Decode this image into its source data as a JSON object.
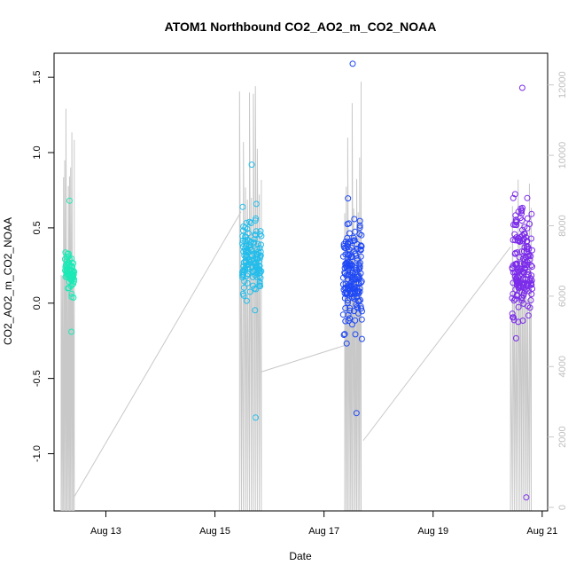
{
  "chart_data": {
    "type": "scatter",
    "title": "ATOM1 Northbound CO2_AO2_m_CO2_NOAA",
    "xlabel": "Date",
    "ylabel": "CO2_AO2_m_CO2_NOAA",
    "x_unit": "days (Aug)",
    "xlim": [
      12.05,
      21.1
    ],
    "ylim": [
      -1.38,
      1.66
    ],
    "y2lim": [
      -100,
      12900
    ],
    "x_ticks": [
      {
        "value": 13,
        "label": "Aug 13"
      },
      {
        "value": 15,
        "label": "Aug 15"
      },
      {
        "value": 17,
        "label": "Aug 17"
      },
      {
        "value": 19,
        "label": "Aug 19"
      },
      {
        "value": 21,
        "label": "Aug 21"
      }
    ],
    "y_ticks": [
      {
        "value": -1.0,
        "label": "-1.0"
      },
      {
        "value": -0.5,
        "label": "-0.5"
      },
      {
        "value": 0.0,
        "label": "0.0"
      },
      {
        "value": 0.5,
        "label": "0.5"
      },
      {
        "value": 1.0,
        "label": "1.0"
      },
      {
        "value": 1.5,
        "label": "1.5"
      }
    ],
    "y2_ticks": [
      {
        "value": 0,
        "label": "0"
      },
      {
        "value": 2000,
        "label": "2000"
      },
      {
        "value": 4000,
        "label": "4000"
      },
      {
        "value": 6000,
        "label": "6000"
      },
      {
        "value": 8000,
        "label": "8000"
      },
      {
        "value": 10000,
        "label": "10000"
      },
      {
        "value": 12000,
        "label": "12000"
      }
    ],
    "colors": {
      "point_early": "#00FA9A",
      "point_mid": "#1AC6F0",
      "point_late": "#1E3CFF",
      "point_last": "#8A2BE2",
      "altitude": "#C8C8C8",
      "axis": "#000000"
    },
    "clusters": [
      {
        "name": "Aug 12",
        "x_start": 12.25,
        "x_end": 12.42,
        "y_center": 0.2,
        "y_spread": 0.15,
        "y_min": -0.19,
        "y_max": 0.68,
        "count": 70,
        "color": "#1DE9B6"
      },
      {
        "name": "Aug 15",
        "x_start": 15.5,
        "x_end": 15.85,
        "y_center": 0.3,
        "y_spread": 0.28,
        "y_min": -0.76,
        "y_max": 0.92,
        "count": 140,
        "color": "#22BDEB"
      },
      {
        "name": "Aug 17",
        "x_start": 17.35,
        "x_end": 17.7,
        "y_center": 0.2,
        "y_spread": 0.38,
        "y_min": -0.73,
        "y_max": 1.59,
        "count": 170,
        "color": "#1F48F5"
      },
      {
        "name": "Aug 20",
        "x_start": 20.45,
        "x_end": 20.82,
        "y_center": 0.25,
        "y_spread": 0.45,
        "y_min": -1.29,
        "y_max": 1.43,
        "count": 170,
        "color": "#7B2BEA"
      }
    ],
    "altitude_track": [
      {
        "x_start": 12.18,
        "x_end": 12.42,
        "peak": 11800
      },
      {
        "x_start": 15.45,
        "x_end": 15.85,
        "peak": 12000
      },
      {
        "x_start": 17.38,
        "x_end": 17.68,
        "peak": 12300
      },
      {
        "x_start": 20.42,
        "x_end": 20.8,
        "peak": 9500
      }
    ],
    "altitude_connectors": [
      {
        "x": [
          12.42,
          15.48
        ],
        "y2": [
          300,
          8400
        ]
      },
      {
        "x": [
          15.85,
          17.38
        ],
        "y2": [
          3850,
          4600
        ]
      },
      {
        "x": [
          17.72,
          20.42
        ],
        "y2": [
          1900,
          7400
        ]
      }
    ]
  }
}
